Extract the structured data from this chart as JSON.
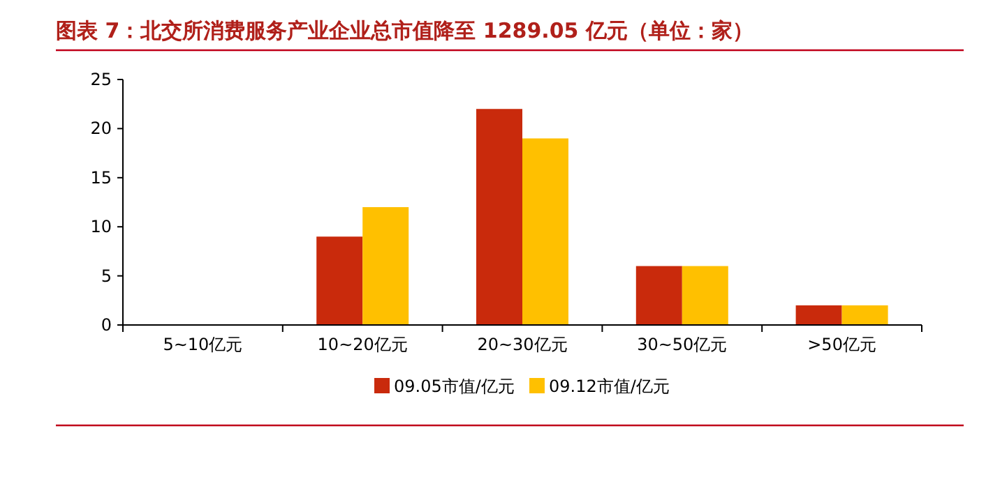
{
  "chart_data": {
    "type": "bar",
    "title": "图表 7：北交所消费服务产业企业总市值降至 1289.05 亿元（单位：家）",
    "categories": [
      "5~10亿元",
      "10~20亿元",
      "20~30亿元",
      "30~50亿元",
      ">50亿元"
    ],
    "series": [
      {
        "name": "09.05市值/亿元",
        "color": "#c92a0c",
        "values": [
          0,
          9,
          22,
          6,
          2
        ]
      },
      {
        "name": "09.12市值/亿元",
        "color": "#ffc000",
        "values": [
          0,
          12,
          19,
          6,
          2
        ]
      }
    ],
    "ylim": [
      0,
      25
    ],
    "yticks": [
      0,
      5,
      10,
      15,
      20,
      25
    ],
    "grid": false,
    "legend": "bottom"
  }
}
